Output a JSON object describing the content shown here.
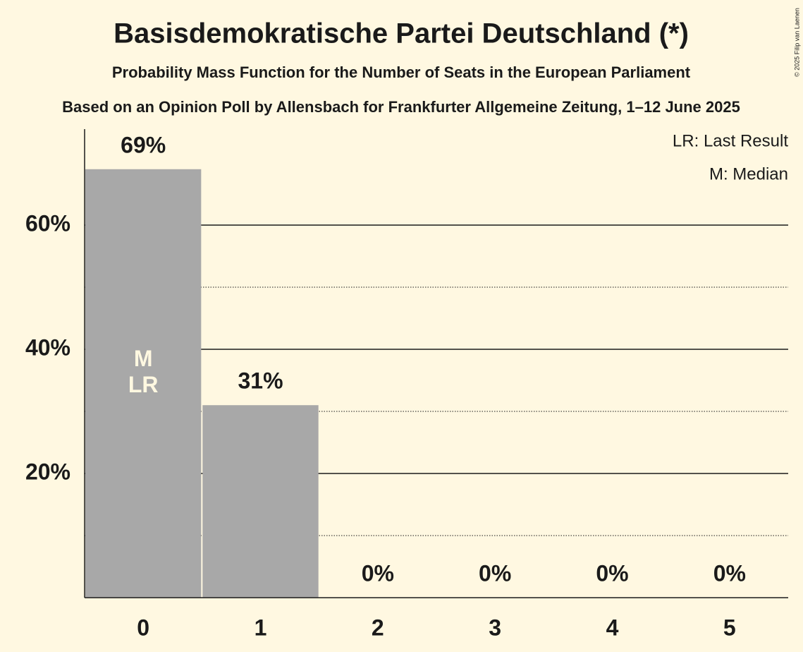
{
  "chart_data": {
    "type": "bar",
    "title": "Basisdemokratische Partei Deutschland (*)",
    "subtitle": "Probability Mass Function for the Number of Seats in the European Parliament",
    "caption": "Based on an Opinion Poll by Allensbach for Frankfurter Allgemeine Zeitung, 1–12 June 2025",
    "copyright": "© 2025 Filip van Laenen",
    "categories": [
      "0",
      "1",
      "2",
      "3",
      "4",
      "5"
    ],
    "values": [
      69,
      31,
      0,
      0,
      0,
      0
    ],
    "value_labels": [
      "69%",
      "31%",
      "0%",
      "0%",
      "0%",
      "0%"
    ],
    "color": "#a8a8a8",
    "ylim": [
      0,
      75
    ],
    "yticks": [
      {
        "value": 20,
        "label": "20%"
      },
      {
        "value": 40,
        "label": "40%"
      },
      {
        "value": 60,
        "label": "60%"
      }
    ],
    "minor_gridlines": [
      10,
      30,
      50
    ],
    "grid": true,
    "median": 0,
    "median_label": "M",
    "last_result": 0,
    "last_result_label": "LR",
    "legend": [
      "LR: Last Result",
      "M: Median"
    ],
    "legend_position": "top-right"
  }
}
